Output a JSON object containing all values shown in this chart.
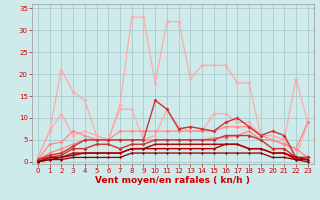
{
  "background_color": "#ceeaea",
  "grid_color": "#aacccc",
  "xlabel": "Vent moyen/en rafales ( kn/h )",
  "xlabel_color": "#cc0000",
  "xlabel_fontsize": 6.5,
  "yticks": [
    0,
    5,
    10,
    15,
    20,
    25,
    30,
    35
  ],
  "xticks": [
    0,
    1,
    2,
    3,
    4,
    5,
    6,
    7,
    8,
    9,
    10,
    11,
    12,
    13,
    14,
    15,
    16,
    17,
    18,
    19,
    20,
    21,
    22,
    23
  ],
  "ylim": [
    -0.5,
    36
  ],
  "xlim": [
    -0.5,
    23.5
  ],
  "tick_color": "#cc0000",
  "tick_fontsize": 5.0,
  "series": [
    {
      "y": [
        1,
        7,
        21,
        16,
        14,
        6,
        5,
        13,
        33,
        33,
        18,
        32,
        32,
        19,
        22,
        22,
        22,
        18,
        18,
        6,
        6,
        5,
        19,
        9
      ],
      "color": "#ffaaaa",
      "lw": 0.9,
      "ms": 2.0,
      "zorder": 2
    },
    {
      "y": [
        1,
        7,
        11,
        6,
        7,
        6,
        5,
        12,
        12,
        5,
        6,
        12,
        8,
        7,
        7,
        11,
        11,
        9,
        9,
        6,
        6,
        5,
        1,
        9
      ],
      "color": "#ffaaaa",
      "lw": 0.9,
      "ms": 2.0,
      "zorder": 2
    },
    {
      "y": [
        0.5,
        4,
        4.5,
        7,
        6,
        5,
        5,
        5,
        5,
        5,
        5,
        5,
        5,
        5,
        5,
        5.5,
        5.5,
        6,
        7,
        5,
        5,
        4,
        3,
        9
      ],
      "color": "#ff8888",
      "lw": 0.9,
      "ms": 2.0,
      "zorder": 2
    },
    {
      "y": [
        0.5,
        2,
        3,
        4,
        5,
        5,
        5,
        7,
        7,
        7,
        7,
        7,
        7,
        7,
        7,
        7,
        8,
        8,
        8,
        6,
        5,
        4,
        3,
        1
      ],
      "color": "#ff8888",
      "lw": 0.9,
      "ms": 2.0,
      "zorder": 2
    },
    {
      "y": [
        0.5,
        1.5,
        2,
        3.5,
        5,
        5,
        5,
        5,
        5,
        5,
        14,
        12,
        7.5,
        8,
        7.5,
        7,
        9,
        10,
        8,
        6,
        7,
        6,
        1,
        1
      ],
      "color": "#cc3333",
      "lw": 1.0,
      "ms": 2.0,
      "zorder": 3
    },
    {
      "y": [
        0.5,
        1,
        1.5,
        3,
        3,
        4,
        4,
        3,
        4,
        4,
        5,
        5,
        5,
        5,
        5,
        5,
        6,
        6,
        6,
        5,
        3,
        3,
        1,
        1
      ],
      "color": "#cc3333",
      "lw": 1.0,
      "ms": 2.0,
      "zorder": 3
    },
    {
      "y": [
        0,
        1,
        1,
        2,
        2,
        2,
        2,
        2,
        3,
        3,
        4,
        4,
        4,
        4,
        4,
        4,
        4,
        4,
        3,
        3,
        2,
        2,
        0.5,
        0.5
      ],
      "color": "#aa0000",
      "lw": 1.0,
      "ms": 1.5,
      "zorder": 4
    },
    {
      "y": [
        0,
        0.5,
        1,
        1.5,
        2,
        2,
        2,
        2,
        3,
        3,
        3,
        3,
        3,
        3,
        3,
        3,
        4,
        4,
        3,
        3,
        2,
        2,
        1,
        0.5
      ],
      "color": "#aa0000",
      "lw": 1.0,
      "ms": 1.5,
      "zorder": 4
    },
    {
      "y": [
        0,
        0.5,
        0.5,
        1,
        1,
        1,
        1,
        1,
        2,
        2,
        2,
        2,
        2,
        2,
        2,
        2,
        2,
        2,
        2,
        2,
        1,
        1,
        0.5,
        0
      ],
      "color": "#880000",
      "lw": 0.9,
      "ms": 1.5,
      "zorder": 4
    }
  ]
}
